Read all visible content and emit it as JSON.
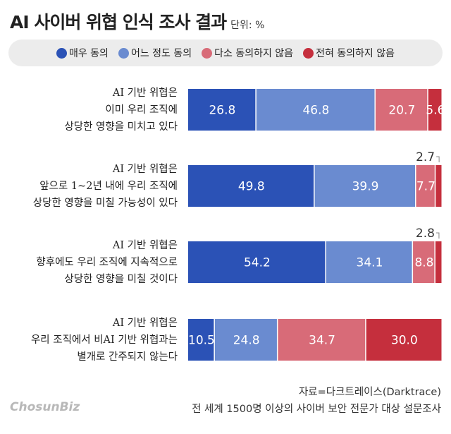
{
  "title": "AI 사이버 위협 인식 조사 결과",
  "unit": "단위: %",
  "colors": [
    "#2b52b6",
    "#6a8bd0",
    "#d86b78",
    "#c52f3d"
  ],
  "chart_data": {
    "type": "bar",
    "stacked": true,
    "orientation": "horizontal",
    "title": "AI 사이버 위협 인식 조사 결과",
    "unit": "%",
    "legend_position": "top",
    "categories": [
      [
        "AI 기반 위협은",
        "이미 우리 조직에",
        "상당한 영향을 미치고 있다"
      ],
      [
        "AI 기반 위협은",
        "앞으로 1~2년 내에 우리 조직에",
        "상당한 영향을 미칠 가능성이 있다"
      ],
      [
        "AI 기반 위협은",
        "향후에도 우리 조직에 지속적으로",
        "상당한 영향을 미칠 것이다"
      ],
      [
        "AI 기반 위협은",
        "우리 조직에서 비AI 기반 위협과는",
        "별개로 간주되지 않는다"
      ]
    ],
    "series": [
      {
        "name": "매우 동의",
        "values": [
          26.8,
          49.8,
          54.2,
          10.5
        ]
      },
      {
        "name": "어느 정도 동의",
        "values": [
          46.8,
          39.9,
          34.1,
          24.8
        ]
      },
      {
        "name": "다소 동의하지 않음",
        "values": [
          20.7,
          7.7,
          8.8,
          34.7
        ]
      },
      {
        "name": "전혀 동의하지 않음",
        "values": [
          5.6,
          2.7,
          2.8,
          30.0
        ]
      }
    ]
  },
  "source": "자료=다크트레이스(Darktrace)",
  "note": "전 세계 1500명 이상의 사이버 보안 전문가 대상 설문조사",
  "logo": "ChosunBiz"
}
